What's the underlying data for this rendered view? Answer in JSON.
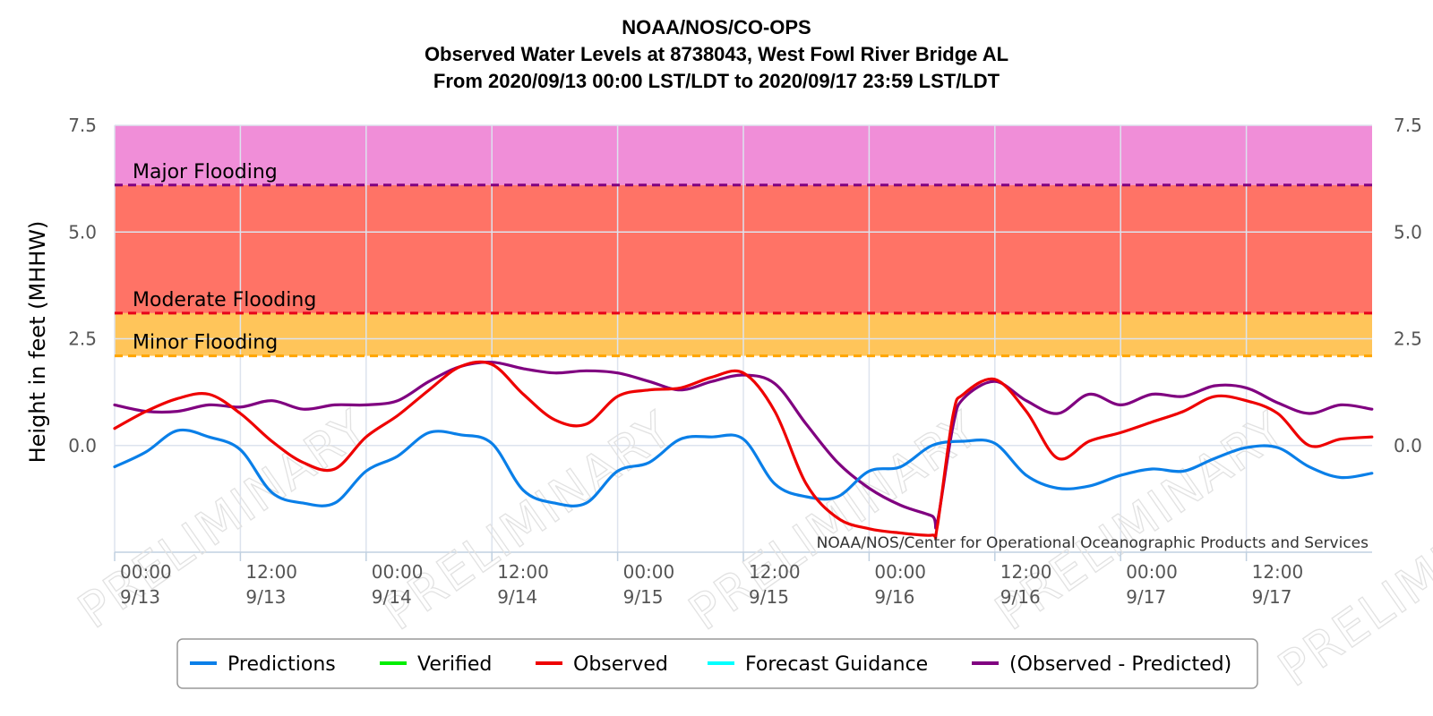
{
  "chart_data": {
    "type": "line",
    "title_lines": [
      "NOAA/NOS/CO-OPS",
      "Observed Water Levels at 8738043, West Fowl River Bridge AL",
      "From 2020/09/13 00:00 LST/LDT to 2020/09/17 23:59 LST/LDT"
    ],
    "ylabel": "Height in feet (MHHW)",
    "xlim": [
      "2020-09-13 00:00",
      "2020-09-18 00:00"
    ],
    "ylim": [
      -2.5,
      7.5
    ],
    "yticks": [
      {
        "value": 7.5,
        "label": "7.5"
      },
      {
        "value": 5.0,
        "label": "5.0"
      },
      {
        "value": 2.5,
        "label": "2.5"
      },
      {
        "value": 0.0,
        "label": "0.0"
      }
    ],
    "xticks": [
      {
        "t": "2020-09-13 00:00",
        "time": "00:00",
        "date": "9/13"
      },
      {
        "t": "2020-09-13 12:00",
        "time": "12:00",
        "date": "9/13"
      },
      {
        "t": "2020-09-14 00:00",
        "time": "00:00",
        "date": "9/14"
      },
      {
        "t": "2020-09-14 12:00",
        "time": "12:00",
        "date": "9/14"
      },
      {
        "t": "2020-09-15 00:00",
        "time": "00:00",
        "date": "9/15"
      },
      {
        "t": "2020-09-15 12:00",
        "time": "12:00",
        "date": "9/15"
      },
      {
        "t": "2020-09-16 00:00",
        "time": "00:00",
        "date": "9/16"
      },
      {
        "t": "2020-09-16 12:00",
        "time": "12:00",
        "date": "9/16"
      },
      {
        "t": "2020-09-17 00:00",
        "time": "00:00",
        "date": "9/17"
      },
      {
        "t": "2020-09-17 12:00",
        "time": "12:00",
        "date": "9/17"
      }
    ],
    "grid": true,
    "flood_bands": [
      {
        "name": "Major Flooding",
        "from": 6.1,
        "to": 7.5,
        "fill": "#f08ed8",
        "line_color": "#800080"
      },
      {
        "name": "Moderate Flooding",
        "from": 3.1,
        "to": 6.1,
        "fill": "#ff7366",
        "line_color": "#e8001a"
      },
      {
        "name": "Minor Flooding",
        "from": 2.1,
        "to": 3.1,
        "fill": "#ffc55a",
        "line_color": "#ffa500"
      }
    ],
    "series": [
      {
        "name": "Predictions",
        "color": "#0a7fe8",
        "x": [
          "2020-09-13 00:00",
          "2020-09-13 03:00",
          "2020-09-13 06:00",
          "2020-09-13 09:00",
          "2020-09-13 12:00",
          "2020-09-13 15:00",
          "2020-09-13 18:00",
          "2020-09-13 21:00",
          "2020-09-14 00:00",
          "2020-09-14 03:00",
          "2020-09-14 06:00",
          "2020-09-14 09:00",
          "2020-09-14 12:00",
          "2020-09-14 15:00",
          "2020-09-14 18:00",
          "2020-09-14 21:00",
          "2020-09-15 00:00",
          "2020-09-15 03:00",
          "2020-09-15 06:00",
          "2020-09-15 09:00",
          "2020-09-15 12:00",
          "2020-09-15 15:00",
          "2020-09-15 18:00",
          "2020-09-15 21:00",
          "2020-09-16 00:00",
          "2020-09-16 03:00",
          "2020-09-16 06:00",
          "2020-09-16 09:00",
          "2020-09-16 12:00",
          "2020-09-16 15:00",
          "2020-09-16 18:00",
          "2020-09-16 21:00",
          "2020-09-17 00:00",
          "2020-09-17 03:00",
          "2020-09-17 06:00",
          "2020-09-17 09:00",
          "2020-09-17 12:00",
          "2020-09-17 15:00",
          "2020-09-17 18:00",
          "2020-09-17 21:00",
          "2020-09-17 23:59"
        ],
        "y": [
          -0.5,
          -0.15,
          0.35,
          0.2,
          -0.1,
          -1.1,
          -1.35,
          -1.35,
          -0.6,
          -0.25,
          0.3,
          0.25,
          0.05,
          -1.05,
          -1.35,
          -1.35,
          -0.6,
          -0.4,
          0.15,
          0.2,
          0.15,
          -0.9,
          -1.2,
          -1.2,
          -0.6,
          -0.5,
          0.0,
          0.1,
          0.05,
          -0.7,
          -1.0,
          -0.95,
          -0.7,
          -0.55,
          -0.6,
          -0.3,
          -0.05,
          -0.05,
          -0.5,
          -0.75,
          -0.65
        ]
      },
      {
        "name": "Verified",
        "color": "#00ee00",
        "x": [],
        "y": []
      },
      {
        "name": "Observed",
        "color": "#ee0000",
        "x": [
          "2020-09-13 00:00",
          "2020-09-13 03:00",
          "2020-09-13 06:00",
          "2020-09-13 09:00",
          "2020-09-13 12:00",
          "2020-09-13 15:00",
          "2020-09-13 18:00",
          "2020-09-13 21:00",
          "2020-09-14 00:00",
          "2020-09-14 03:00",
          "2020-09-14 06:00",
          "2020-09-14 09:00",
          "2020-09-14 12:00",
          "2020-09-14 15:00",
          "2020-09-14 18:00",
          "2020-09-14 21:00",
          "2020-09-15 00:00",
          "2020-09-15 03:00",
          "2020-09-15 06:00",
          "2020-09-15 09:00",
          "2020-09-15 12:00",
          "2020-09-15 15:00",
          "2020-09-15 18:00",
          "2020-09-15 21:00",
          "2020-09-16 00:00",
          "2020-09-16 03:00",
          "2020-09-16 06:00",
          "2020-09-16 06:30",
          "2020-09-16 08:00",
          "2020-09-16 09:00",
          "2020-09-16 12:00",
          "2020-09-16 15:00",
          "2020-09-16 18:00",
          "2020-09-16 21:00",
          "2020-09-17 00:00",
          "2020-09-17 03:00",
          "2020-09-17 06:00",
          "2020-09-17 09:00",
          "2020-09-17 12:00",
          "2020-09-17 15:00",
          "2020-09-17 18:00",
          "2020-09-17 21:00",
          "2020-09-17 23:59"
        ],
        "y": [
          0.4,
          0.8,
          1.1,
          1.2,
          0.75,
          0.1,
          -0.4,
          -0.55,
          0.2,
          0.7,
          1.3,
          1.85,
          1.9,
          1.2,
          0.6,
          0.5,
          1.15,
          1.3,
          1.35,
          1.6,
          1.7,
          0.8,
          -0.9,
          -1.7,
          -1.95,
          -2.05,
          -2.1,
          -1.9,
          0.7,
          1.2,
          1.55,
          0.8,
          -0.3,
          0.1,
          0.3,
          0.55,
          0.8,
          1.15,
          1.05,
          0.75,
          0.0,
          0.15,
          0.2
        ]
      },
      {
        "name": "Forecast Guidance",
        "color": "#00ffff",
        "x": [],
        "y": []
      },
      {
        "name": "(Observed - Predicted)",
        "color": "#800080",
        "x": [
          "2020-09-13 00:00",
          "2020-09-13 03:00",
          "2020-09-13 06:00",
          "2020-09-13 09:00",
          "2020-09-13 12:00",
          "2020-09-13 15:00",
          "2020-09-13 18:00",
          "2020-09-13 21:00",
          "2020-09-14 00:00",
          "2020-09-14 03:00",
          "2020-09-14 06:00",
          "2020-09-14 09:00",
          "2020-09-14 12:00",
          "2020-09-14 15:00",
          "2020-09-14 18:00",
          "2020-09-14 21:00",
          "2020-09-15 00:00",
          "2020-09-15 03:00",
          "2020-09-15 06:00",
          "2020-09-15 09:00",
          "2020-09-15 12:00",
          "2020-09-15 15:00",
          "2020-09-15 18:00",
          "2020-09-15 21:00",
          "2020-09-16 00:00",
          "2020-09-16 03:00",
          "2020-09-16 06:00",
          "2020-09-16 06:30",
          "2020-09-16 08:00",
          "2020-09-16 09:00",
          "2020-09-16 12:00",
          "2020-09-16 15:00",
          "2020-09-16 18:00",
          "2020-09-16 21:00",
          "2020-09-17 00:00",
          "2020-09-17 03:00",
          "2020-09-17 06:00",
          "2020-09-17 09:00",
          "2020-09-17 12:00",
          "2020-09-17 15:00",
          "2020-09-17 18:00",
          "2020-09-17 21:00",
          "2020-09-17 23:59"
        ],
        "y": [
          0.95,
          0.8,
          0.8,
          0.95,
          0.9,
          1.05,
          0.85,
          0.95,
          0.95,
          1.05,
          1.5,
          1.85,
          1.95,
          1.8,
          1.7,
          1.75,
          1.7,
          1.5,
          1.3,
          1.5,
          1.65,
          1.45,
          0.5,
          -0.4,
          -1.0,
          -1.4,
          -1.65,
          -1.8,
          0.45,
          1.1,
          1.5,
          1.05,
          0.75,
          1.2,
          0.95,
          1.2,
          1.15,
          1.4,
          1.35,
          1.0,
          0.75,
          0.95,
          0.85
        ]
      }
    ],
    "legend": {
      "position": "bottom-center"
    }
  },
  "labels": {
    "credit": "NOAA/NOS/Center for Operational Oceanographic Products and Services",
    "watermark": "PRELIMINARY"
  }
}
